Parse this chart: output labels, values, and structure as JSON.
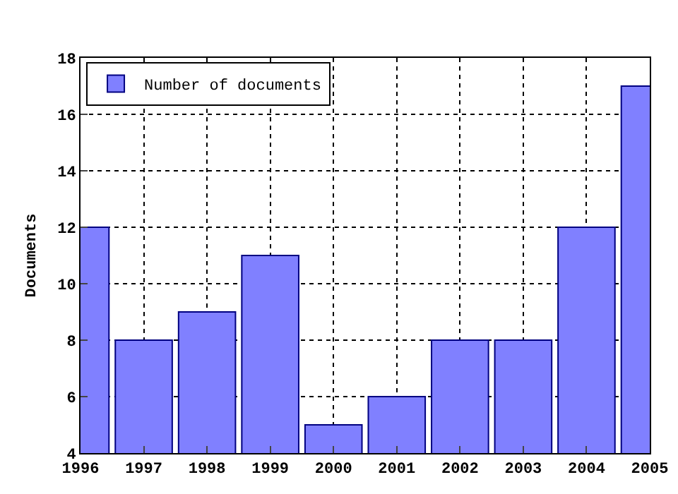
{
  "chart_data": {
    "type": "bar",
    "ylabel": "Documents",
    "x": [
      1996,
      1997,
      1998,
      1999,
      2000,
      2001,
      2002,
      2003,
      2004,
      2005
    ],
    "series": [
      {
        "name": "Number of documents",
        "color": "#8080ff",
        "values": [
          12,
          8,
          9,
          11,
          5,
          6,
          8,
          8,
          12,
          17
        ]
      }
    ],
    "xlim": [
      1996,
      2005
    ],
    "xticks": [
      1996,
      1997,
      1998,
      1999,
      2000,
      2001,
      2002,
      2003,
      2004,
      2005
    ],
    "ylim": [
      4,
      18
    ],
    "yticks": [
      4,
      6,
      8,
      10,
      12,
      14,
      16,
      18
    ],
    "grid": true,
    "legend": "top left"
  }
}
